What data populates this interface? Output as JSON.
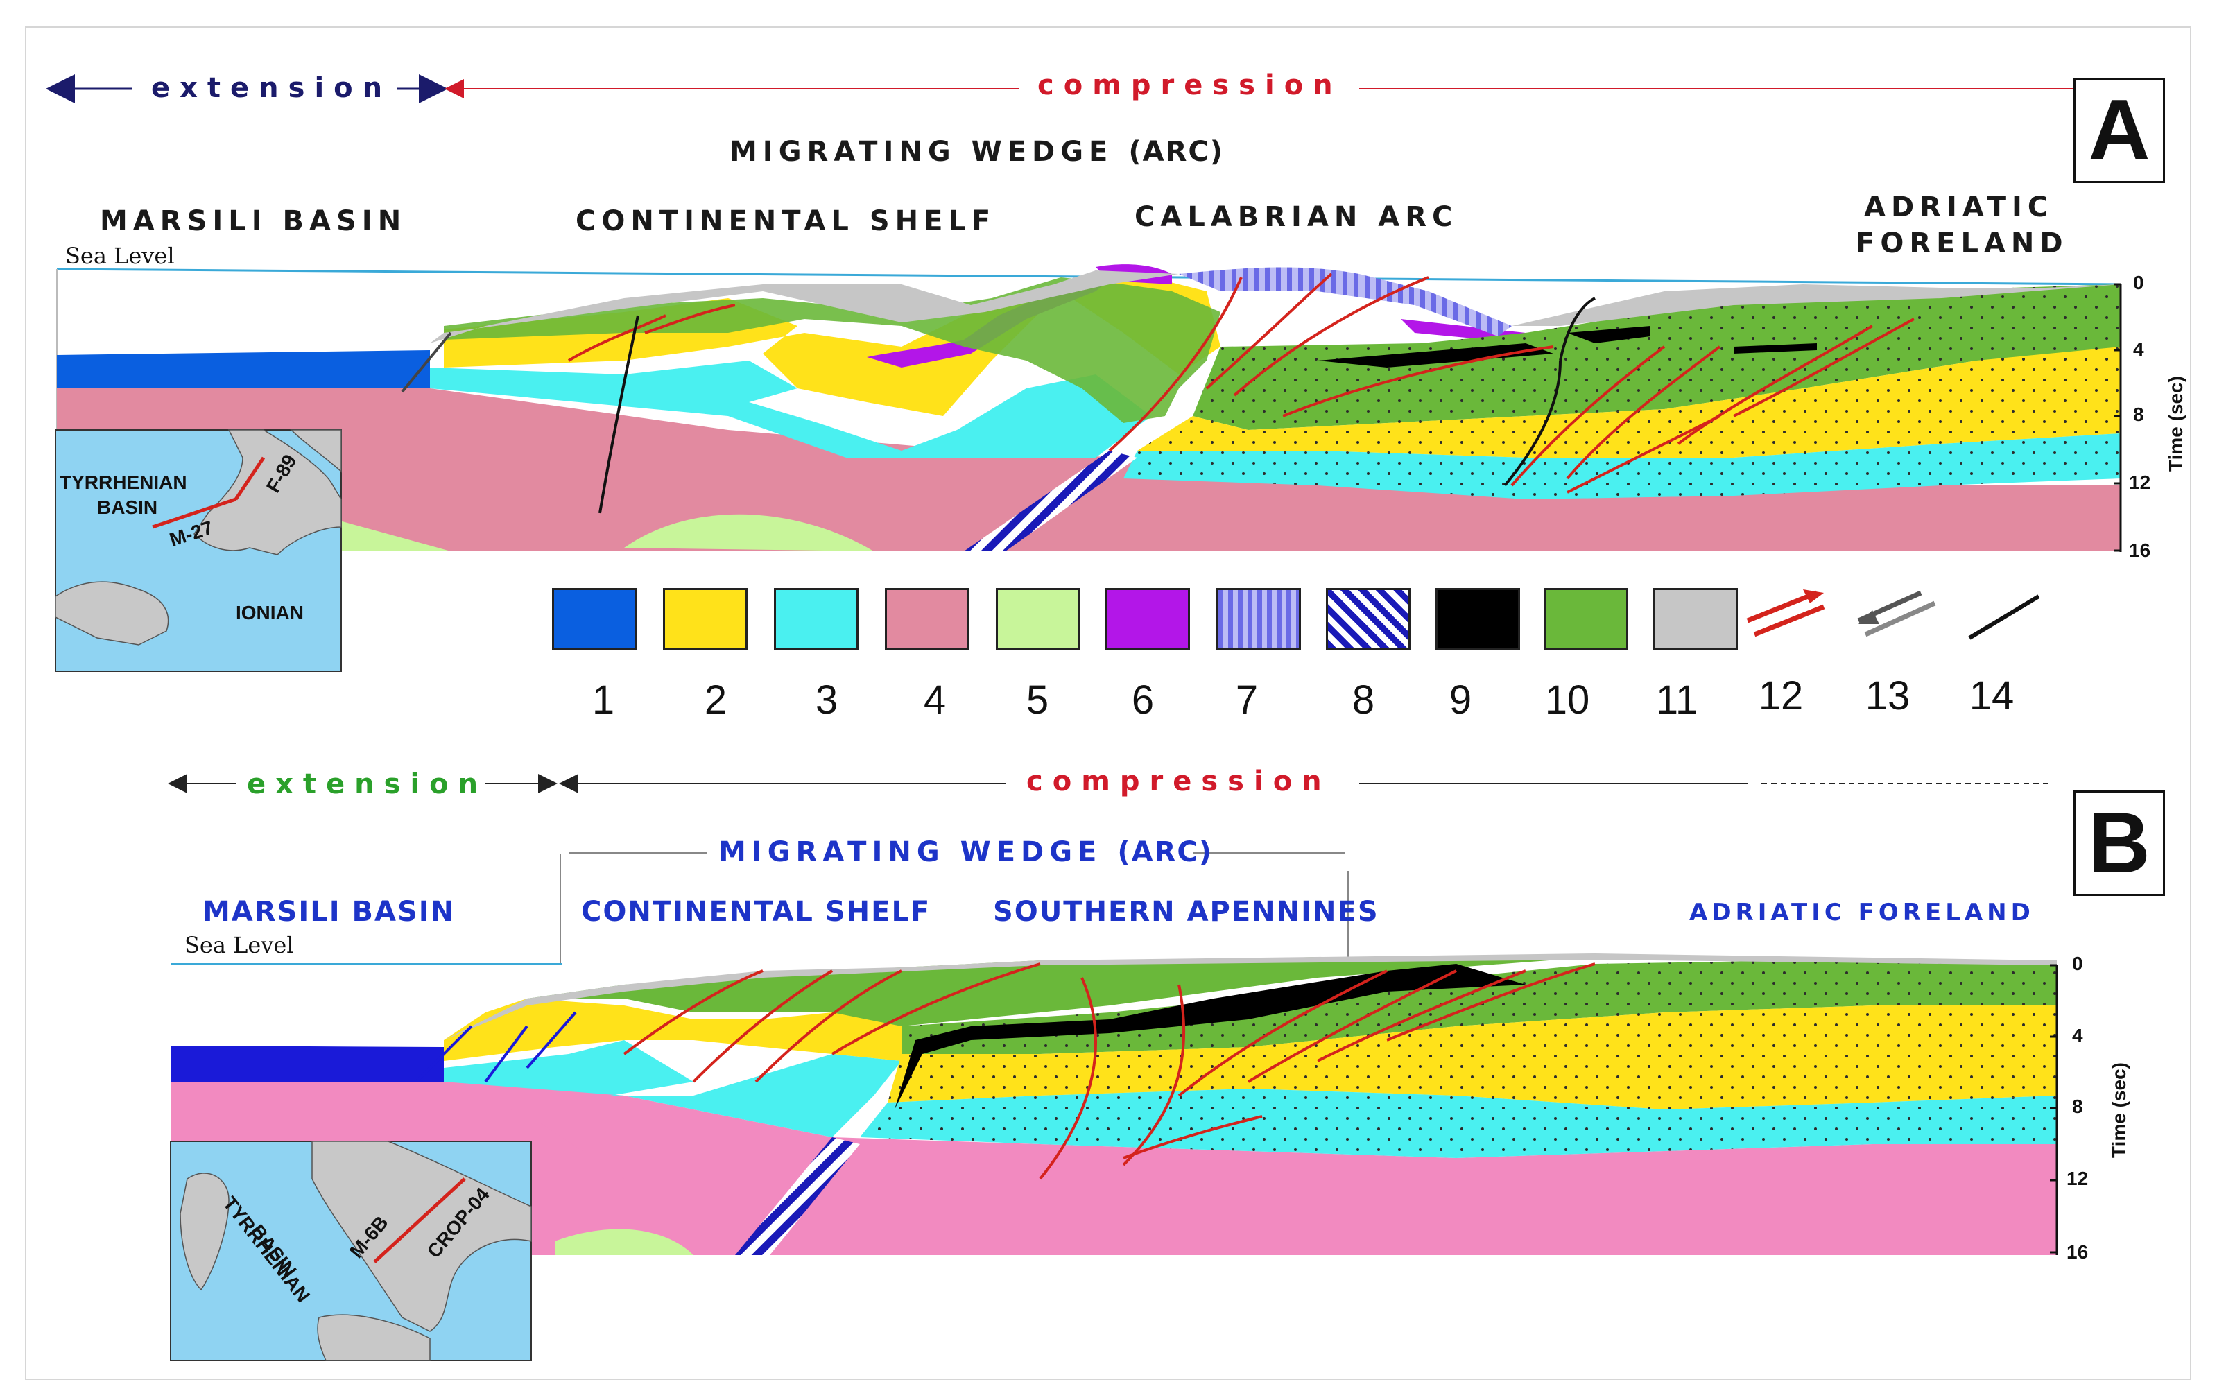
{
  "panel_a": {
    "letter": "A",
    "extension": "extension",
    "compression": "compression",
    "wedge": "MIGRATING  WEDGE",
    "wedge_suffix": "(ARC)",
    "regions": [
      "MARSILI BASIN",
      "CONTINENTAL SHELF",
      "CALABRIAN ARC",
      "ADRIATIC",
      "FORELAND"
    ],
    "sea_level": "Sea Level",
    "axis_ticks": [
      "0",
      "4",
      "8",
      "12",
      "16"
    ],
    "axis_title": "Time (sec)",
    "inset": {
      "labels": [
        "TYRRHENIAN",
        "BASIN",
        "M-27",
        "F-89",
        "IONIAN"
      ]
    }
  },
  "panel_b": {
    "letter": "B",
    "extension": "extension",
    "compression": "compression",
    "wedge": "MIGRATING  WEDGE",
    "wedge_suffix": "(ARC)",
    "regions": [
      "MARSILI  BASIN",
      "CONTINENTAL  SHELF",
      "SOUTHERN  APENNINES",
      "ADRIATIC FORELAND"
    ],
    "sea_level": "Sea Level",
    "axis_ticks": [
      "0",
      "4",
      "8",
      "12",
      "16"
    ],
    "axis_title": "Time (sec)",
    "inset": {
      "labels": [
        "TYRRHENIAN",
        "BASIN",
        "M-6B",
        "CROP-04"
      ]
    }
  },
  "legend": [
    {
      "n": "1",
      "fill": "#0a5fe0",
      "pattern": "solid"
    },
    {
      "n": "2",
      "fill": "#ffe21a",
      "pattern": "solid"
    },
    {
      "n": "3",
      "fill": "#4af0f0",
      "pattern": "solid"
    },
    {
      "n": "4",
      "fill": "#e28aa0",
      "pattern": "solid"
    },
    {
      "n": "5",
      "fill": "#c8f59a",
      "pattern": "solid"
    },
    {
      "n": "6",
      "fill": "#b316e8",
      "pattern": "solid"
    },
    {
      "n": "7",
      "fill": "#8c8cf0",
      "pattern": "vertical-stripes"
    },
    {
      "n": "8",
      "fill": "#1a1ab8",
      "pattern": "diagonal-stripes"
    },
    {
      "n": "9",
      "fill": "#000000",
      "pattern": "solid"
    },
    {
      "n": "10",
      "fill": "#6ab83a",
      "pattern": "solid"
    },
    {
      "n": "11",
      "fill": "#c6c6c6",
      "pattern": "solid"
    },
    {
      "n": "12",
      "symbol": "red-thrust-arrows"
    },
    {
      "n": "13",
      "symbol": "grey-normal-arrows"
    },
    {
      "n": "14",
      "symbol": "black-fault-line"
    }
  ],
  "colors": {
    "extension_a": "#1b1b6b",
    "compression": "#d11a2a",
    "extension_b": "#2aa02a",
    "fault_red": "#d4231c",
    "sea": "#8fd3f2"
  }
}
